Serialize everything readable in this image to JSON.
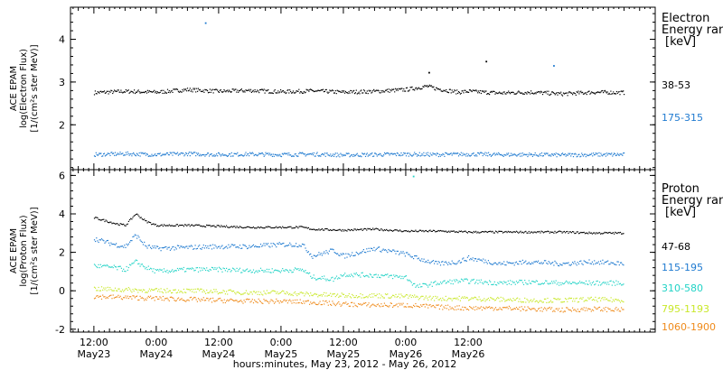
{
  "chart_data": [
    {
      "type": "scatter",
      "panel": "electron",
      "ylabel": [
        "ACE EPAM",
        "log(Electron Flux)",
        "[1/(cm²s ster MeV)]"
      ],
      "ylim": [
        0.95,
        4.75
      ],
      "yticks": [
        2,
        3,
        4
      ],
      "legend_title": [
        "Electron",
        "Energy range",
        "[keV]"
      ],
      "series": [
        {
          "name": "38-53",
          "color": "#000000",
          "x": [
            0,
            6,
            12,
            18,
            24,
            30,
            36,
            42,
            48,
            54,
            60,
            64,
            66,
            70,
            72,
            78,
            84,
            90,
            96,
            102
          ],
          "y": [
            2.75,
            2.78,
            2.76,
            2.82,
            2.78,
            2.8,
            2.77,
            2.79,
            2.76,
            2.78,
            2.82,
            2.9,
            2.84,
            2.76,
            2.78,
            2.74,
            2.76,
            2.72,
            2.76,
            2.75
          ]
        },
        {
          "name": "175-315",
          "color": "#1f7ad0",
          "x": [
            0,
            6,
            12,
            18,
            24,
            30,
            36,
            42,
            48,
            54,
            60,
            66,
            72,
            78,
            84,
            90,
            96,
            102
          ],
          "y": [
            1.3,
            1.32,
            1.3,
            1.32,
            1.3,
            1.31,
            1.3,
            1.31,
            1.29,
            1.3,
            1.31,
            1.3,
            1.31,
            1.3,
            1.3,
            1.29,
            1.3,
            1.3
          ]
        }
      ],
      "outliers": [
        {
          "series": "175-315",
          "x": 21.5,
          "y": 4.38
        },
        {
          "series": "38-53",
          "x": 64.5,
          "y": 3.22
        },
        {
          "series": "38-53",
          "x": 75.5,
          "y": 3.48
        },
        {
          "series": "175-315",
          "x": 88.5,
          "y": 3.38
        }
      ]
    },
    {
      "type": "scatter",
      "panel": "proton",
      "ylabel": [
        "ACE EPAM",
        "log(Proton Flux)",
        "[1/(cm²s ster MeV)]"
      ],
      "ylim": [
        -2.15,
        6.3
      ],
      "yticks": [
        -2,
        0,
        2,
        4,
        6
      ],
      "legend_title": [
        "Proton",
        "Energy range",
        "[keV]"
      ],
      "series": [
        {
          "name": "47-68",
          "color": "#000000",
          "x": [
            0,
            4,
            6,
            8,
            10,
            12,
            18,
            24,
            30,
            36,
            40,
            42,
            48,
            54,
            60,
            66,
            72,
            78,
            84,
            90,
            96,
            102
          ],
          "y": [
            3.8,
            3.5,
            3.4,
            4.0,
            3.6,
            3.4,
            3.4,
            3.35,
            3.3,
            3.3,
            3.3,
            3.2,
            3.15,
            3.2,
            3.1,
            3.1,
            3.05,
            3.05,
            3.05,
            3.05,
            3.0,
            3.0
          ]
        },
        {
          "name": "115-195",
          "color": "#1f7ad0",
          "x": [
            0,
            4,
            6,
            8,
            10,
            12,
            18,
            24,
            30,
            36,
            40,
            42,
            46,
            48,
            54,
            60,
            62,
            66,
            70,
            72,
            78,
            84,
            90,
            96,
            102
          ],
          "y": [
            2.7,
            2.4,
            2.3,
            2.9,
            2.3,
            2.2,
            2.25,
            2.3,
            2.3,
            2.4,
            2.4,
            1.8,
            2.1,
            1.8,
            2.2,
            1.9,
            1.7,
            1.4,
            1.5,
            1.7,
            1.4,
            1.5,
            1.4,
            1.5,
            1.4
          ]
        },
        {
          "name": "310-580",
          "color": "#22d3c6",
          "x": [
            0,
            4,
            6,
            8,
            10,
            12,
            18,
            24,
            30,
            36,
            40,
            42,
            46,
            48,
            54,
            60,
            62,
            66,
            70,
            72,
            78,
            84,
            90,
            96,
            102
          ],
          "y": [
            1.3,
            1.2,
            1.1,
            1.5,
            1.2,
            1.0,
            1.1,
            1.1,
            1.05,
            1.05,
            1.1,
            0.7,
            0.6,
            0.85,
            0.8,
            0.7,
            0.2,
            0.4,
            0.5,
            0.5,
            0.4,
            0.45,
            0.4,
            0.4,
            0.4
          ]
        },
        {
          "name": "795-1193",
          "color": "#c9e82a",
          "x": [
            0,
            6,
            12,
            18,
            24,
            30,
            36,
            42,
            48,
            54,
            60,
            66,
            72,
            78,
            84,
            90,
            96,
            102
          ],
          "y": [
            0.1,
            0.05,
            0.0,
            0.0,
            -0.05,
            -0.1,
            -0.1,
            -0.2,
            -0.25,
            -0.25,
            -0.3,
            -0.4,
            -0.4,
            -0.45,
            -0.5,
            -0.5,
            -0.45,
            -0.5
          ]
        },
        {
          "name": "1060-1900",
          "color": "#ef8a1a",
          "x": [
            0,
            6,
            12,
            18,
            24,
            30,
            36,
            42,
            48,
            54,
            60,
            66,
            72,
            78,
            84,
            90,
            96,
            102
          ],
          "y": [
            -0.3,
            -0.35,
            -0.4,
            -0.45,
            -0.5,
            -0.55,
            -0.55,
            -0.6,
            -0.7,
            -0.75,
            -0.75,
            -0.85,
            -0.9,
            -0.9,
            -0.95,
            -1.0,
            -0.95,
            -1.0
          ]
        }
      ],
      "outliers": [
        {
          "series": "310-580",
          "x": 61.5,
          "y": 5.95
        }
      ]
    }
  ],
  "x_axis": {
    "hours_range": [
      -4.5,
      108
    ],
    "ticks": [
      {
        "hour": 0,
        "time": "12:00",
        "date": "May23"
      },
      {
        "hour": 12,
        "time": "0:00",
        "date": "May24"
      },
      {
        "hour": 24,
        "time": "12:00",
        "date": "May24"
      },
      {
        "hour": 36,
        "time": "0:00",
        "date": "May25"
      },
      {
        "hour": 48,
        "time": "12:00",
        "date": "May25"
      },
      {
        "hour": 60,
        "time": "0:00",
        "date": "May26"
      },
      {
        "hour": 72,
        "time": "12:00",
        "date": "May26"
      }
    ],
    "label": "hours:minutes, May 23, 2012 - May 26, 2012"
  }
}
